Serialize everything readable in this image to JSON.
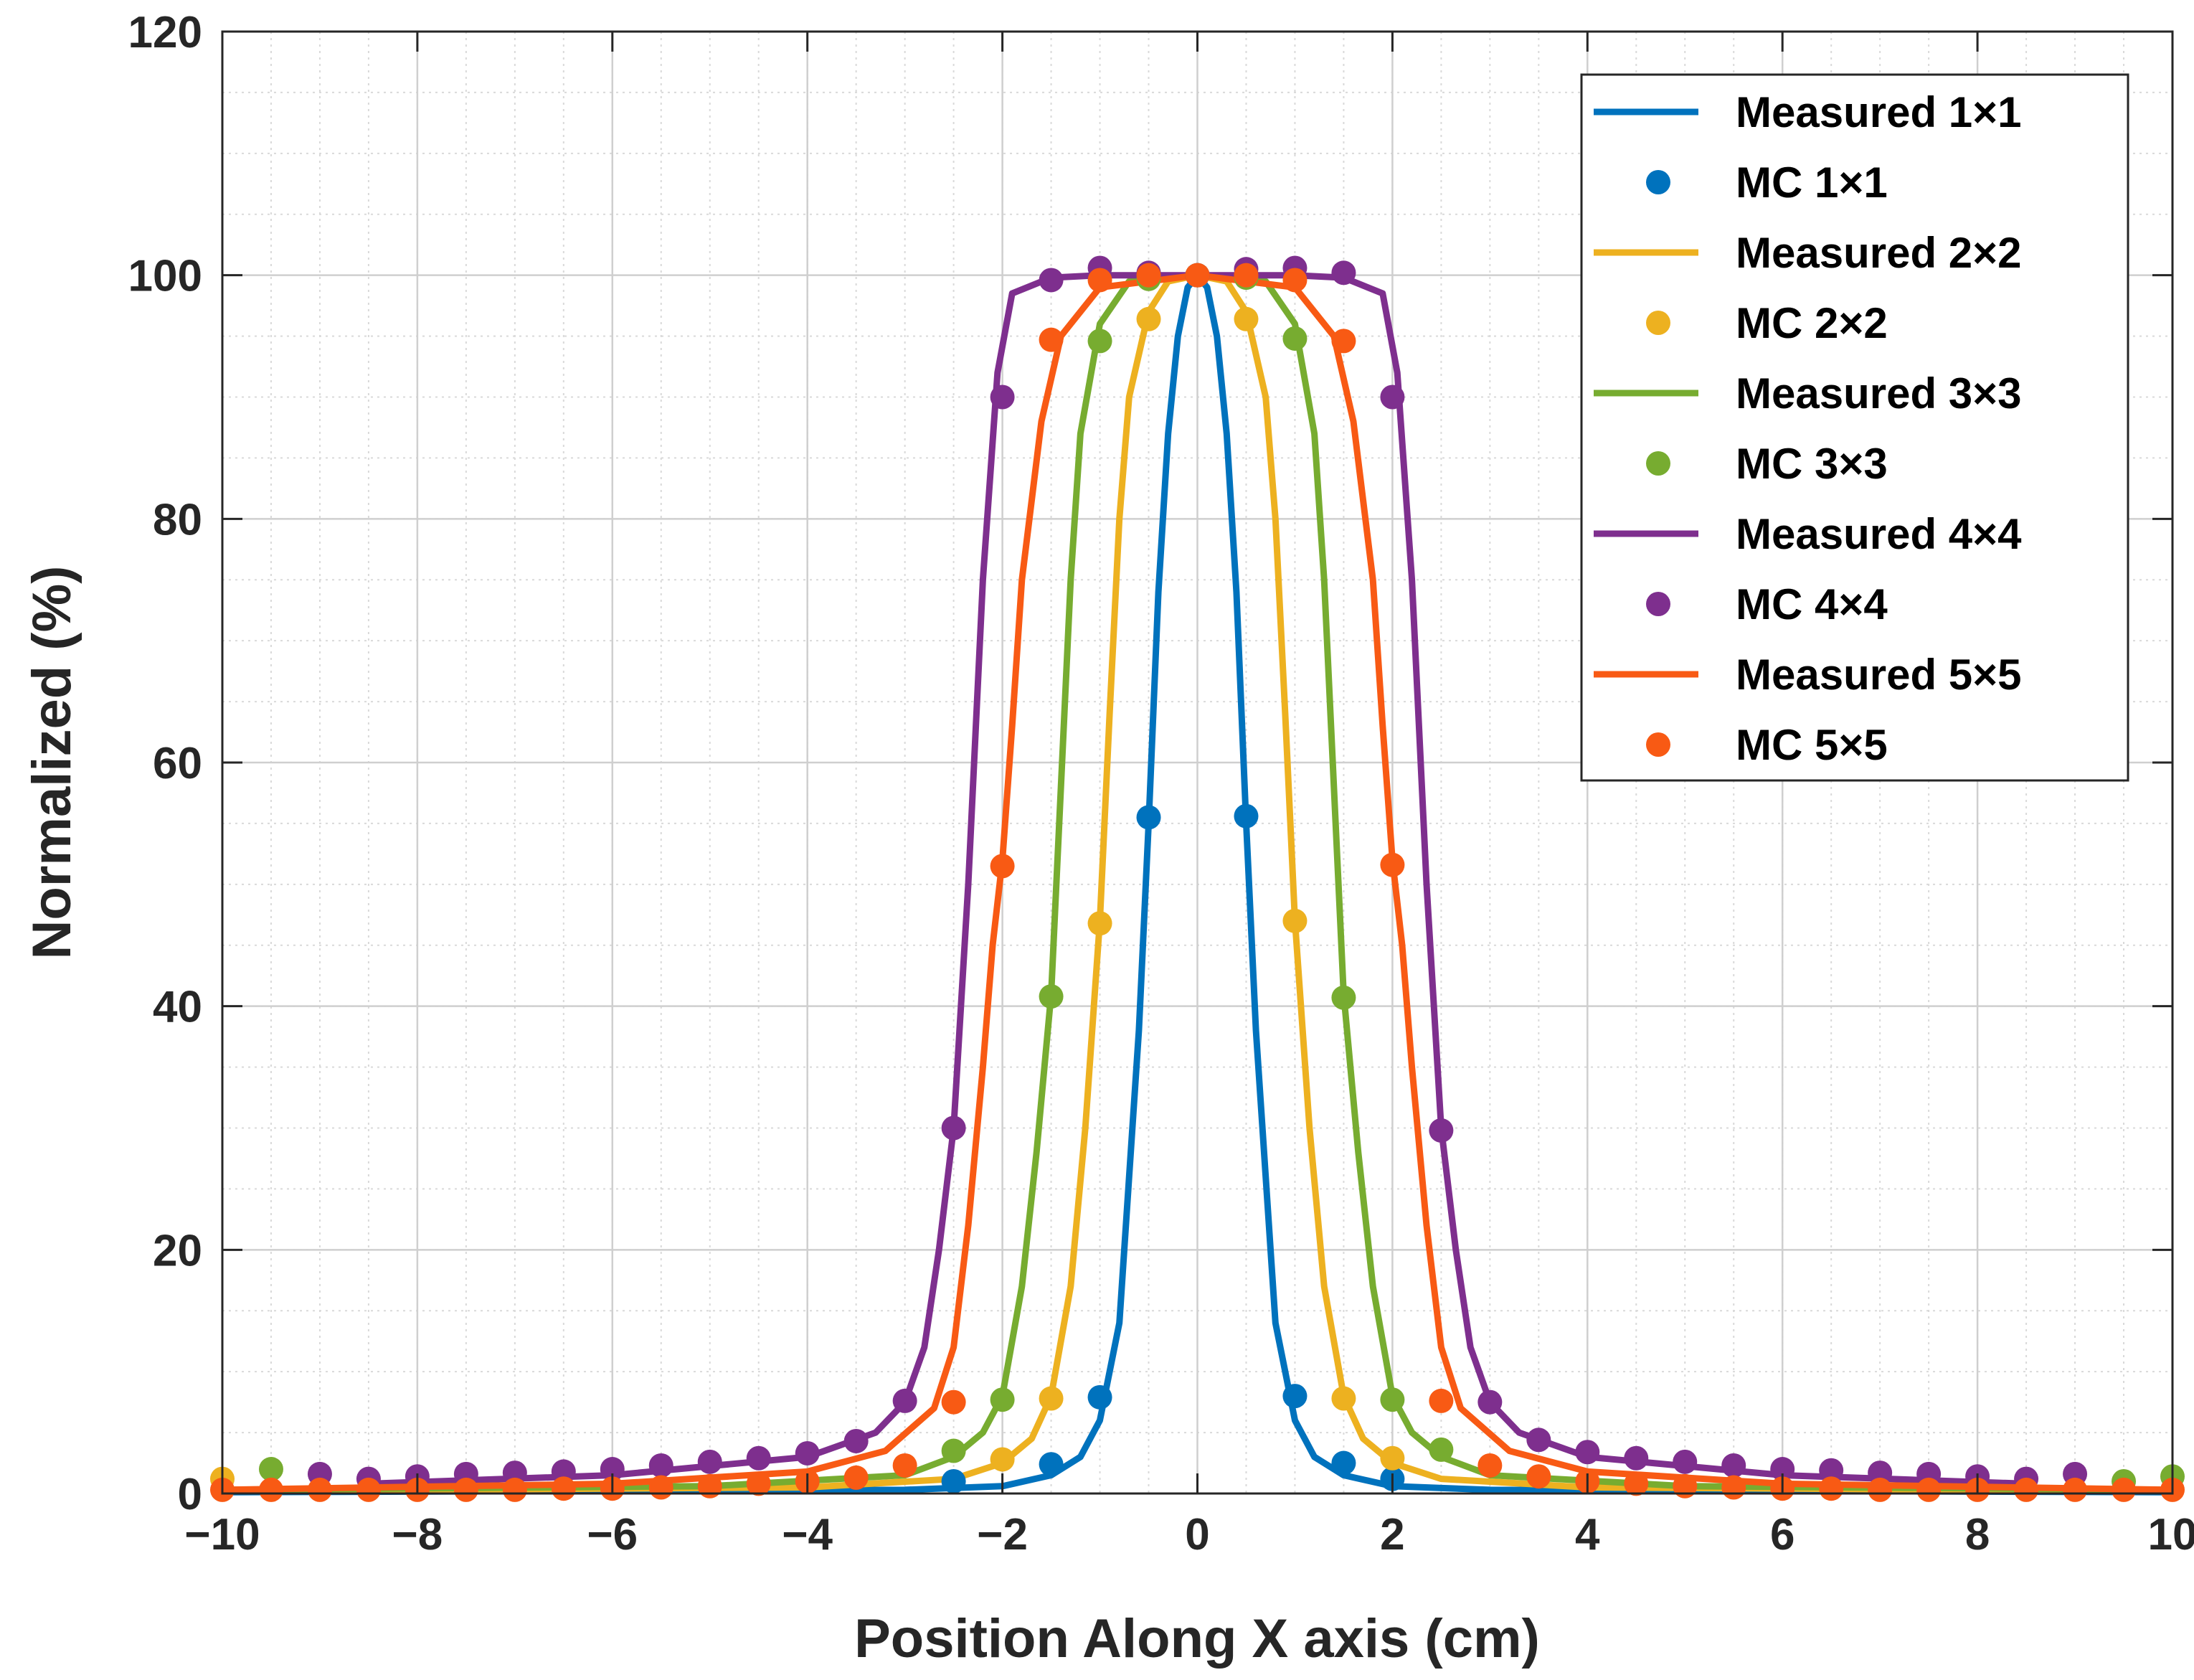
{
  "chart_data": {
    "type": "line",
    "xlabel": "Position Along X axis (cm)",
    "ylabel": "Normalized (%)",
    "xlim": [
      -10,
      10
    ],
    "ylim": [
      0,
      120
    ],
    "xticks": [
      -10,
      -8,
      -6,
      -4,
      -2,
      0,
      2,
      4,
      6,
      8,
      10
    ],
    "xtick_labels": [
      "−10",
      "−8",
      "−6",
      "−4",
      "−2",
      "0",
      "2",
      "4",
      "6",
      "8",
      "10"
    ],
    "yticks": [
      0,
      20,
      40,
      60,
      80,
      100,
      120
    ],
    "ytick_labels": [
      "0",
      "20",
      "40",
      "60",
      "80",
      "100",
      "120"
    ],
    "grid": true,
    "minor_grid": true,
    "legend_position": "top-right",
    "series": [
      {
        "name": "Measured 1×1",
        "kind": "line",
        "color": "#0072BD",
        "x": [
          -10,
          -3,
          -2,
          -1.5,
          -1.2,
          -1,
          -0.8,
          -0.6,
          -0.5,
          -0.4,
          -0.3,
          -0.2,
          -0.1,
          0,
          0.1,
          0.2,
          0.3,
          0.4,
          0.5,
          0.6,
          0.8,
          1,
          1.2,
          1.5,
          2,
          3,
          10
        ],
        "y": [
          0.1,
          0.3,
          0.6,
          1.5,
          3,
          6,
          14,
          38,
          55,
          74,
          87,
          95,
          99,
          100,
          99,
          95,
          87,
          74,
          55,
          38,
          14,
          6,
          3,
          1.5,
          0.6,
          0.3,
          0.1
        ]
      },
      {
        "name": "MC 1×1",
        "kind": "markers",
        "color": "#0072BD",
        "x": [
          -2.5,
          -1.5,
          -1,
          -0.5,
          0,
          0.5,
          1,
          1.5,
          2
        ],
        "y": [
          1.0,
          2.4,
          7.9,
          55.5,
          100,
          55.6,
          8.0,
          2.5,
          1.2
        ]
      },
      {
        "name": "Measured 2×2",
        "kind": "line",
        "color": "#EDB120",
        "x": [
          -10,
          -4,
          -2.5,
          -2,
          -1.7,
          -1.5,
          -1.3,
          -1.15,
          -1,
          -0.9,
          -0.8,
          -0.7,
          -0.5,
          -0.3,
          0,
          0.3,
          0.5,
          0.7,
          0.8,
          0.9,
          1,
          1.15,
          1.3,
          1.5,
          1.7,
          2,
          2.5,
          4,
          10
        ],
        "y": [
          0.2,
          0.5,
          1.2,
          2.5,
          4.5,
          8,
          17,
          30,
          47,
          64,
          80,
          90,
          97,
          99.5,
          100,
          99.5,
          97,
          90,
          80,
          64,
          47,
          30,
          17,
          8,
          4.5,
          2.5,
          1.2,
          0.5,
          0.2
        ]
      },
      {
        "name": "MC 2×2",
        "kind": "markers",
        "color": "#EDB120",
        "x": [
          -10,
          -2,
          -1.5,
          -1,
          -0.5,
          0,
          0.5,
          1,
          1.5,
          2
        ],
        "y": [
          1.2,
          2.8,
          7.8,
          46.8,
          96.4,
          100,
          96.4,
          47.0,
          7.8,
          2.9
        ]
      },
      {
        "name": "Measured 3×3",
        "kind": "line",
        "color": "#77AC30",
        "x": [
          -10,
          -5,
          -3,
          -2.5,
          -2.2,
          -2,
          -1.8,
          -1.65,
          -1.5,
          -1.4,
          -1.3,
          -1.2,
          -1,
          -0.7,
          0,
          0.7,
          1,
          1.2,
          1.3,
          1.4,
          1.5,
          1.65,
          1.8,
          2,
          2.2,
          2.5,
          3,
          5,
          10
        ],
        "y": [
          0.3,
          0.6,
          1.5,
          3,
          5,
          8,
          17,
          28,
          41,
          58,
          75,
          87,
          96,
          99.5,
          100,
          99.5,
          96,
          87,
          75,
          58,
          41,
          28,
          17,
          8,
          5,
          3,
          1.5,
          0.6,
          0.3
        ]
      },
      {
        "name": "MC 3×3",
        "kind": "markers",
        "color": "#77AC30",
        "x": [
          -9.5,
          -2.5,
          -2,
          -1.5,
          -1,
          -0.5,
          0,
          0.5,
          1,
          1.5,
          2,
          2.5,
          9.5,
          10
        ],
        "y": [
          2.0,
          3.5,
          7.7,
          40.8,
          94.6,
          99.7,
          100,
          99.8,
          94.8,
          40.7,
          7.7,
          3.6,
          1.0,
          1.4
        ]
      },
      {
        "name": "Measured 4×4",
        "kind": "line",
        "color": "#7E2F8E",
        "x": [
          -8.5,
          -6,
          -4,
          -3.3,
          -3,
          -2.8,
          -2.65,
          -2.5,
          -2.35,
          -2.2,
          -2.05,
          -1.9,
          -1.5,
          -1,
          0,
          1,
          1.5,
          1.9,
          2.05,
          2.2,
          2.35,
          2.5,
          2.65,
          2.8,
          3,
          3.3,
          4,
          6,
          8.5
        ],
        "y": [
          0.8,
          1.5,
          3,
          5,
          7.5,
          12,
          20,
          30,
          50,
          75,
          92,
          98.5,
          99.8,
          100,
          100,
          100,
          99.8,
          98.5,
          92,
          75,
          50,
          30,
          20,
          12,
          7.5,
          5,
          3,
          1.5,
          0.8
        ]
      },
      {
        "name": "MC 4×4",
        "kind": "markers",
        "color": "#7E2F8E",
        "x": [
          -9,
          -8.5,
          -8,
          -7.5,
          -7,
          -6.5,
          -6,
          -5.5,
          -5,
          -4.5,
          -4,
          -3.5,
          -3,
          -2.5,
          -2,
          -1.5,
          -1,
          -0.5,
          0,
          0.5,
          1,
          1.5,
          2,
          2.5,
          3,
          3.5,
          4,
          4.5,
          5,
          5.5,
          6,
          6.5,
          7,
          7.5,
          8,
          8.5,
          9
        ],
        "y": [
          1.6,
          1.2,
          1.4,
          1.6,
          1.7,
          1.8,
          2.0,
          2.3,
          2.6,
          2.9,
          3.3,
          4.3,
          7.6,
          30.0,
          90.0,
          99.6,
          100.6,
          100.2,
          100,
          100.5,
          100.6,
          100.2,
          90.0,
          29.8,
          7.5,
          4.4,
          3.4,
          2.9,
          2.6,
          2.3,
          2.0,
          1.9,
          1.7,
          1.6,
          1.4,
          1.2,
          1.6
        ]
      },
      {
        "name": "Measured 5×5",
        "kind": "line",
        "color": "#F85A14",
        "x": [
          -10,
          -6,
          -4,
          -3.2,
          -2.7,
          -2.5,
          -2.35,
          -2.2,
          -2.1,
          -2,
          -1.9,
          -1.8,
          -1.6,
          -1.4,
          -1,
          0,
          1,
          1.4,
          1.6,
          1.8,
          1.9,
          2,
          2.1,
          2.2,
          2.35,
          2.5,
          2.7,
          3.2,
          4,
          6,
          10
        ],
        "y": [
          0.3,
          0.8,
          1.8,
          3.5,
          7,
          12,
          22,
          35,
          45,
          52,
          63,
          75,
          88,
          95,
          99,
          100,
          99,
          95,
          88,
          75,
          63,
          52,
          45,
          35,
          22,
          12,
          7,
          3.5,
          1.8,
          0.8,
          0.3
        ]
      },
      {
        "name": "MC 5×5",
        "kind": "markers",
        "color": "#F85A14",
        "x": [
          -10,
          -9.5,
          -9,
          -8.5,
          -8,
          -7.5,
          -7,
          -6.5,
          -6,
          -5.5,
          -5,
          -4.5,
          -4,
          -3.5,
          -3,
          -2.5,
          -2,
          -1.5,
          -1,
          -0.5,
          0,
          0.5,
          1,
          1.5,
          2,
          2.5,
          3,
          3.5,
          4,
          4.5,
          5,
          5.5,
          6,
          6.5,
          7,
          7.5,
          8,
          8.5,
          9,
          9.5,
          10
        ],
        "y": [
          0.3,
          0.3,
          0.3,
          0.3,
          0.3,
          0.3,
          0.3,
          0.4,
          0.4,
          0.5,
          0.6,
          0.8,
          1.0,
          1.3,
          2.3,
          7.5,
          51.5,
          94.7,
          99.6,
          100.0,
          100,
          100.0,
          99.6,
          94.6,
          51.6,
          7.6,
          2.3,
          1.4,
          1.0,
          0.8,
          0.6,
          0.5,
          0.4,
          0.4,
          0.3,
          0.3,
          0.3,
          0.3,
          0.3,
          0.3,
          0.3
        ]
      }
    ]
  }
}
